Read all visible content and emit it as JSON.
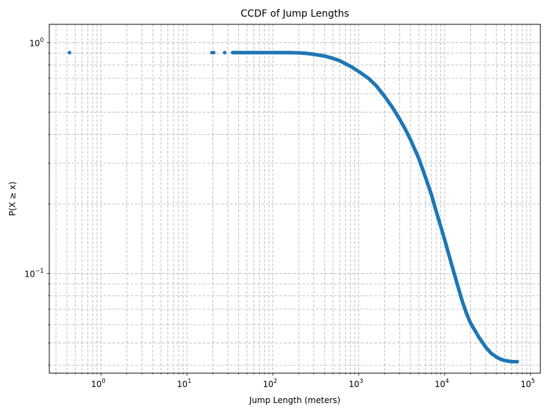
{
  "chart_data": {
    "type": "scatter",
    "title": "CCDF of Jump Lengths",
    "xlabel": "Jump Length (meters)",
    "ylabel": "P(X ≥ x)",
    "x_scale": "log",
    "y_scale": "log",
    "xlim": [
      0.25,
      130000
    ],
    "ylim": [
      0.037,
      1.2
    ],
    "grid": "both-major-minor-dashed",
    "marker_color": "#1f77b4",
    "x_ticks": [
      {
        "value": 1,
        "base": "10",
        "exp": "0"
      },
      {
        "value": 10,
        "base": "10",
        "exp": "1"
      },
      {
        "value": 100,
        "base": "10",
        "exp": "2"
      },
      {
        "value": 1000,
        "base": "10",
        "exp": "3"
      },
      {
        "value": 10000,
        "base": "10",
        "exp": "4"
      },
      {
        "value": 100000,
        "base": "10",
        "exp": "5"
      }
    ],
    "y_ticks": [
      {
        "value": 0.1,
        "base": "10",
        "exp": "−1"
      },
      {
        "value": 1,
        "base": "10",
        "exp": "0"
      }
    ],
    "points": [
      [
        0.43,
        0.905
      ],
      [
        19.5,
        0.905
      ],
      [
        20.5,
        0.905
      ],
      [
        27.5,
        0.905
      ],
      [
        34,
        0.905
      ],
      [
        40,
        0.905
      ],
      [
        50,
        0.905
      ],
      [
        70,
        0.905
      ],
      [
        100,
        0.905
      ],
      [
        150,
        0.905
      ],
      [
        200,
        0.903
      ],
      [
        250,
        0.898
      ],
      [
        300,
        0.89
      ],
      [
        400,
        0.875
      ],
      [
        500,
        0.855
      ],
      [
        600,
        0.835
      ],
      [
        700,
        0.81
      ],
      [
        800,
        0.79
      ],
      [
        1000,
        0.75
      ],
      [
        1300,
        0.7
      ],
      [
        1600,
        0.65
      ],
      [
        2000,
        0.585
      ],
      [
        2500,
        0.52
      ],
      [
        3000,
        0.465
      ],
      [
        3500,
        0.42
      ],
      [
        4000,
        0.38
      ],
      [
        5000,
        0.315
      ],
      [
        6000,
        0.26
      ],
      [
        7000,
        0.22
      ],
      [
        8000,
        0.185
      ],
      [
        9000,
        0.16
      ],
      [
        10000,
        0.14
      ],
      [
        12000,
        0.11
      ],
      [
        14000,
        0.09
      ],
      [
        16000,
        0.076
      ],
      [
        18000,
        0.067
      ],
      [
        20000,
        0.061
      ],
      [
        25000,
        0.053
      ],
      [
        30000,
        0.048
      ],
      [
        35000,
        0.045
      ],
      [
        40000,
        0.0435
      ],
      [
        45000,
        0.0425
      ],
      [
        50000,
        0.042
      ],
      [
        60000,
        0.0415
      ],
      [
        70000,
        0.0415
      ]
    ]
  }
}
